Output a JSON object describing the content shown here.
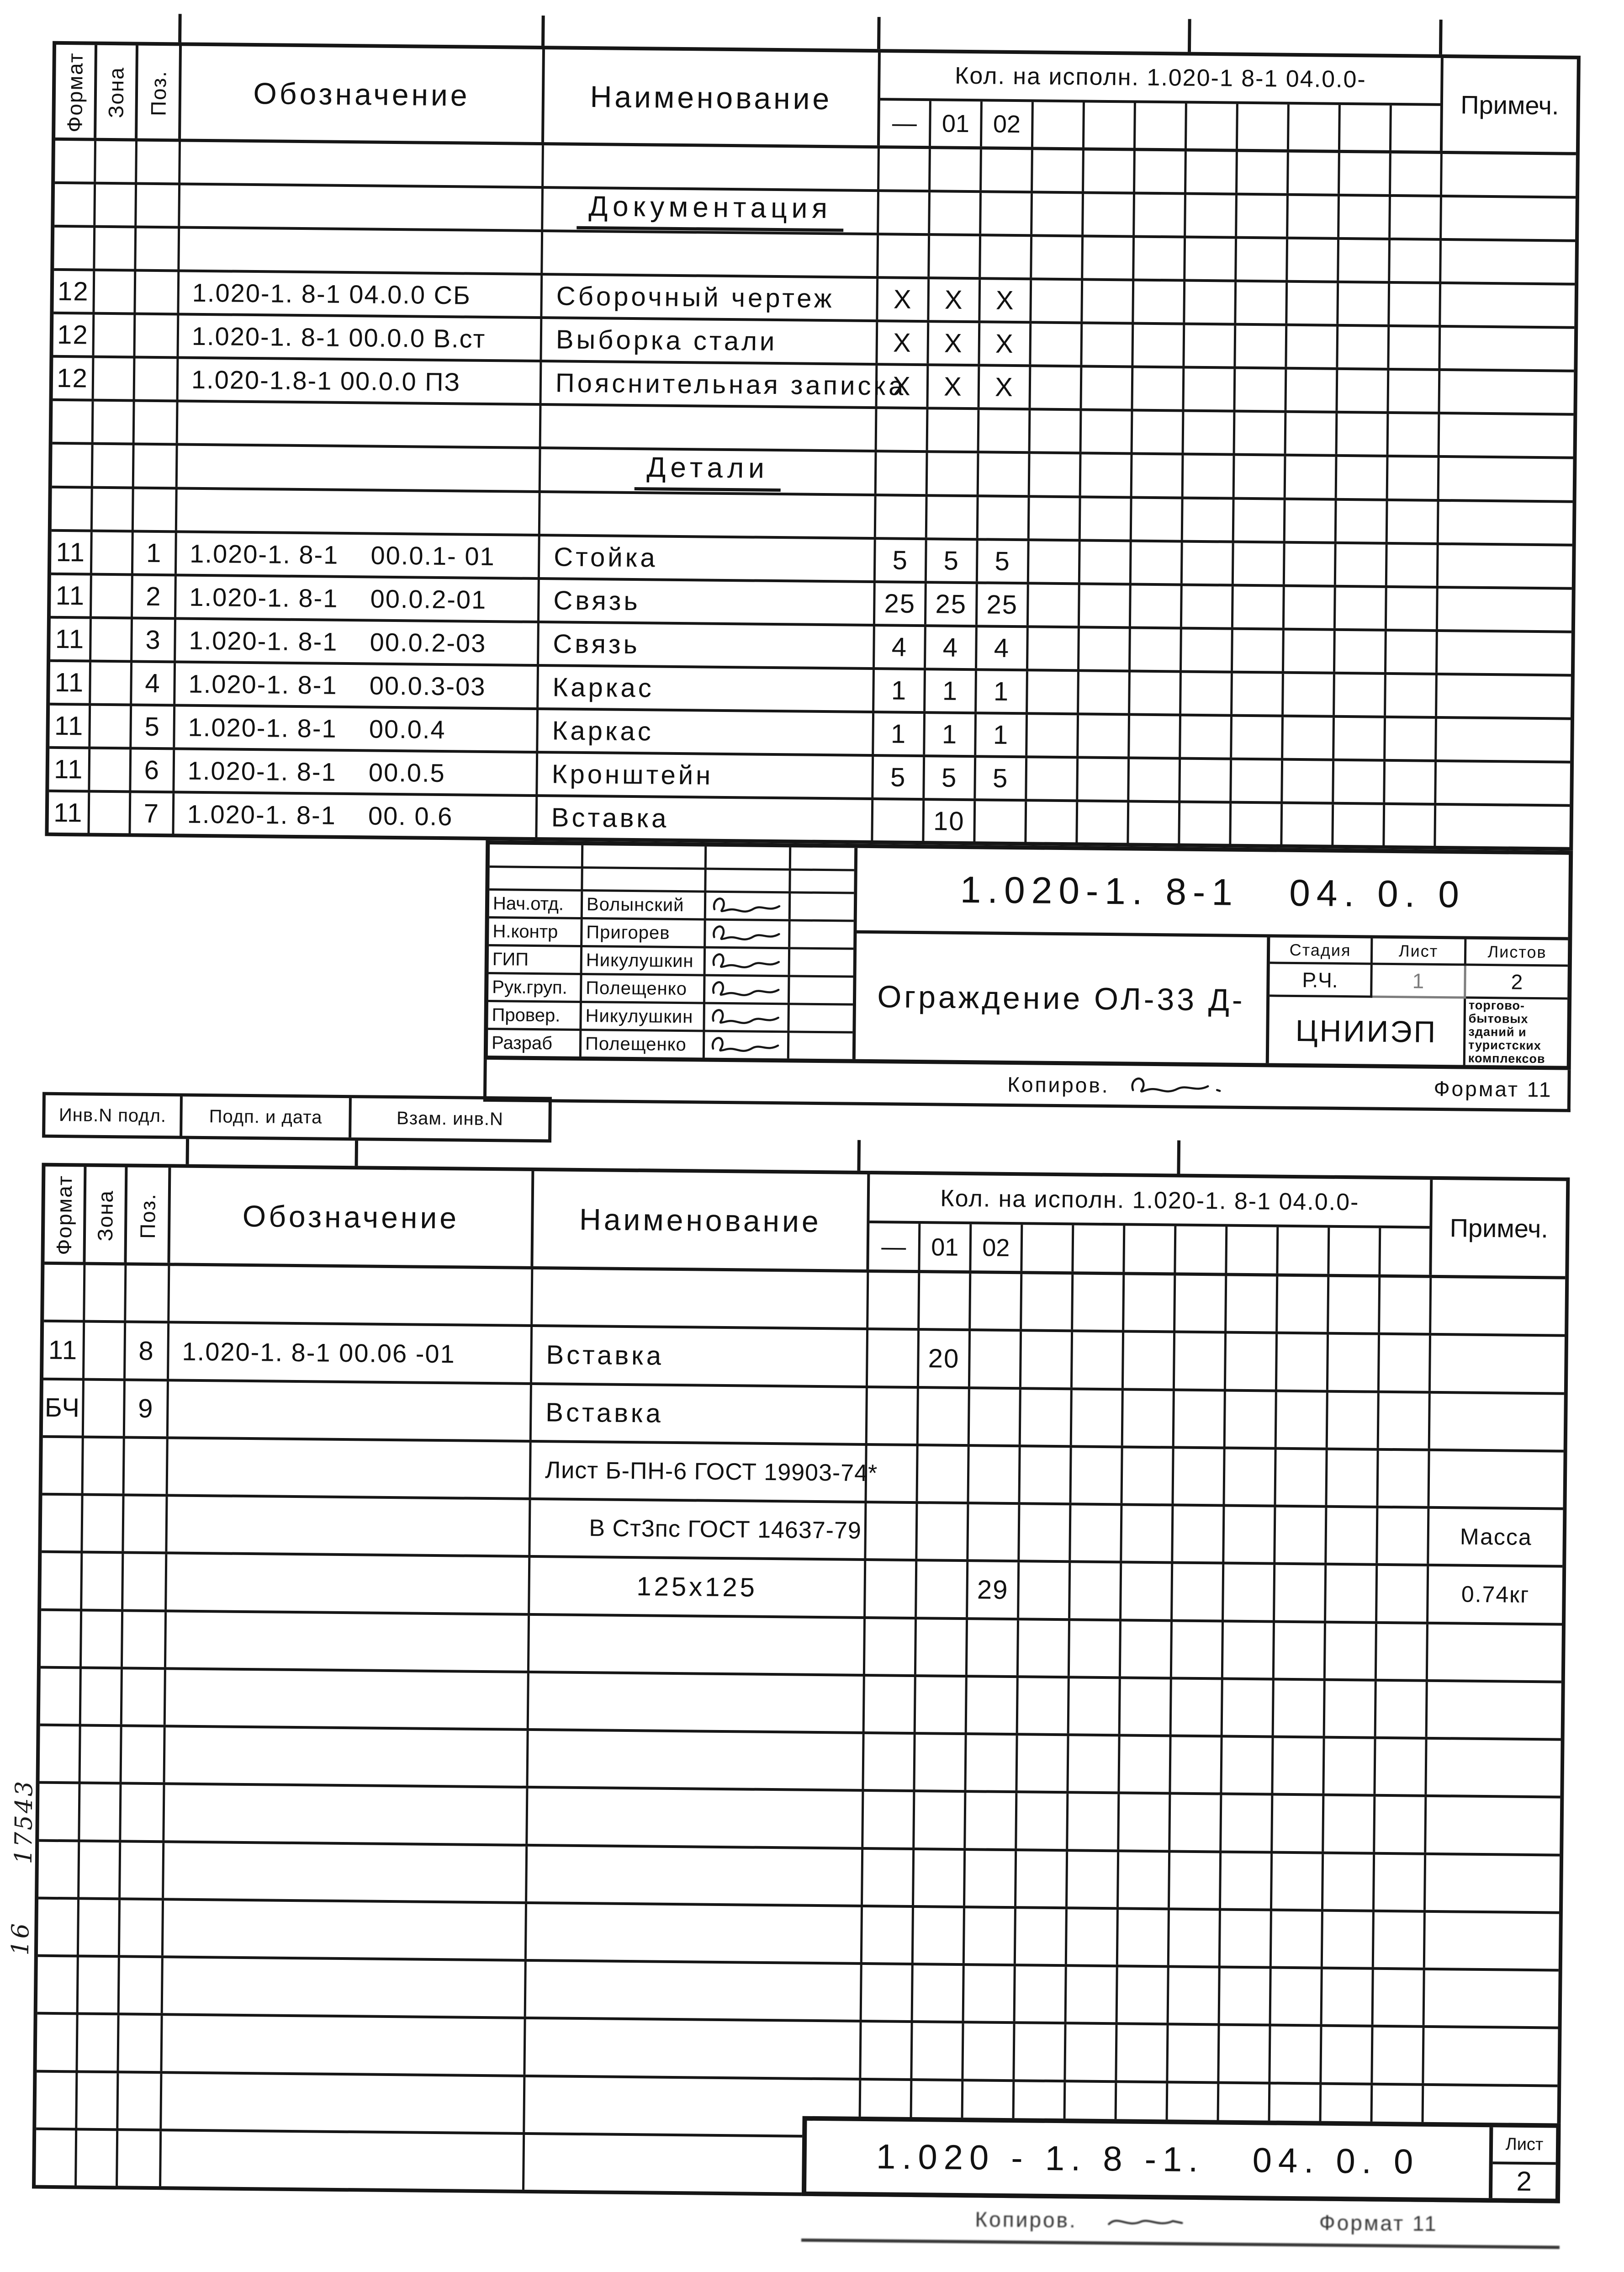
{
  "table1": {
    "header": {
      "format": "Формат",
      "zone": "Зона",
      "pos": "Поз.",
      "designation": "Обозначение",
      "name": "Наименование",
      "qty": "Кол. на исполн. 1.020-1 8-1 04.0.0-",
      "qty_cols": [
        "—",
        "01",
        "02"
      ],
      "note": "Примеч."
    },
    "rows": [
      {
        "k": "e"
      },
      {
        "k": "h",
        "n": "Документация"
      },
      {
        "k": "e"
      },
      {
        "k": "r",
        "f": "12",
        "p": "",
        "d": "1.020-1. 8-1 04.0.0 СБ",
        "n": "Сборочный чертеж",
        "q": [
          "Х",
          "Х",
          "Х"
        ],
        "note": ""
      },
      {
        "k": "r",
        "f": "12",
        "p": "",
        "d": "1.020-1. 8-1 00.0.0 В.ст",
        "n": "Выборка стали",
        "q": [
          "Х",
          "Х",
          "Х"
        ],
        "note": ""
      },
      {
        "k": "r",
        "f": "12",
        "p": "",
        "d": "1.020-1.8-1 00.0.0 ПЗ",
        "n": "Пояснительная записка",
        "q": [
          "Х",
          "Х",
          "Х"
        ],
        "note": ""
      },
      {
        "k": "e"
      },
      {
        "k": "h",
        "n": "Детали"
      },
      {
        "k": "e"
      },
      {
        "k": "r",
        "f": "11",
        "p": "1",
        "d": "1.020-1. 8-1    00.0.1- 01",
        "n": "Стойка",
        "q": [
          "5",
          "5",
          "5"
        ],
        "note": ""
      },
      {
        "k": "r",
        "f": "11",
        "p": "2",
        "d": "1.020-1. 8-1    00.0.2-01",
        "n": "Связь",
        "q": [
          "25",
          "25",
          "25"
        ],
        "note": ""
      },
      {
        "k": "r",
        "f": "11",
        "p": "3",
        "d": "1.020-1. 8-1    00.0.2-03",
        "n": "Связь",
        "q": [
          "4",
          "4",
          "4"
        ],
        "note": ""
      },
      {
        "k": "r",
        "f": "11",
        "p": "4",
        "d": "1.020-1. 8-1    00.0.3-03",
        "n": "Каркас",
        "q": [
          "1",
          "1",
          "1"
        ],
        "note": ""
      },
      {
        "k": "r",
        "f": "11",
        "p": "5",
        "d": "1.020-1. 8-1    00.0.4",
        "n": "Каркас",
        "q": [
          "1",
          "1",
          "1"
        ],
        "note": ""
      },
      {
        "k": "r",
        "f": "11",
        "p": "6",
        "d": "1.020-1. 8-1    00.0.5",
        "n": "Кронштейн",
        "q": [
          "5",
          "5",
          "5"
        ],
        "note": ""
      },
      {
        "k": "r",
        "f": "11",
        "p": "7",
        "d": "1.020-1. 8-1    00. 0.6",
        "n": "Вставка",
        "q": [
          "",
          "10",
          ""
        ],
        "note": ""
      }
    ]
  },
  "stamp": {
    "people": [
      {
        "role": "",
        "name": ""
      },
      {
        "role": "",
        "name": ""
      },
      {
        "role": "Нач.отд.",
        "name": "Волынский",
        "sig": true
      },
      {
        "role": "Н.контр",
        "name": "Пригорев",
        "sig": true
      },
      {
        "role": "ГИП",
        "name": "Никулушкин",
        "sig": true
      },
      {
        "role": "Рук.груп.",
        "name": "Полещенко",
        "sig": true
      },
      {
        "role": "Провер.",
        "name": "Никулушкин",
        "sig": true
      },
      {
        "role": "Разраб",
        "name": "Полещенко",
        "sig": true
      }
    ],
    "doc_number": "1.020-1. 8-1   04. 0. 0",
    "title": "Ограждение ОЛ-33 Д-",
    "stage_label": "Стадия",
    "sheet_label": "Лист",
    "sheets_label": "Листов",
    "stage": "Р.Ч.",
    "sheet": "1",
    "sheets": "2",
    "org": "ЦНИИЭП",
    "org_small": "торгово-\nбытовых\nзданий и\nтуристских\nкомплексов",
    "copy_label": "Копиров.",
    "format_label": "Формат 11"
  },
  "inv_strip": [
    "Инв.N подл.",
    "Подп. и дата",
    "Взам. инв.N"
  ],
  "margin_numbers": [
    "17543",
    "16"
  ],
  "table2": {
    "header": {
      "format": "Формат",
      "zone": "Зона",
      "pos": "Поз.",
      "designation": "Обозначение",
      "name": "Наименование",
      "qty": "Кол. на исполн. 1.020-1. 8-1 04.0.0-",
      "qty_cols": [
        "—",
        "01",
        "02"
      ],
      "note": "Примеч."
    },
    "rows": [
      {
        "k": "e"
      },
      {
        "k": "r",
        "f": "11",
        "p": "8",
        "d": "1.020-1. 8-1 00.06 -01",
        "n": "Вставка",
        "q": [
          "",
          "20",
          ""
        ],
        "note": ""
      },
      {
        "k": "r",
        "f": "БЧ",
        "p": "9",
        "d": "",
        "n": "Вставка",
        "q": [
          "",
          "",
          ""
        ],
        "note": ""
      },
      {
        "k": "m1",
        "n": "Лист Б-ПН-6 ГОСТ 19903-74*"
      },
      {
        "k": "m2",
        "n": "В Ст3пс ГОСТ 14637-79",
        "note": "Масса"
      },
      {
        "k": "sz",
        "n": "125x125",
        "q": [
          "",
          "",
          "29"
        ],
        "note": "0.74кг"
      },
      {
        "k": "e"
      },
      {
        "k": "e"
      },
      {
        "k": "e"
      },
      {
        "k": "e"
      },
      {
        "k": "e"
      },
      {
        "k": "e"
      },
      {
        "k": "e"
      },
      {
        "k": "e"
      },
      {
        "k": "e"
      },
      {
        "k": "e"
      }
    ]
  },
  "footer": {
    "doc_number": "1.020 - 1. 8 -1.   04. 0. 0",
    "sheet_label": "Лист",
    "sheet": "2",
    "copy_label": "Копиров.",
    "format_label": "Формат 11"
  }
}
